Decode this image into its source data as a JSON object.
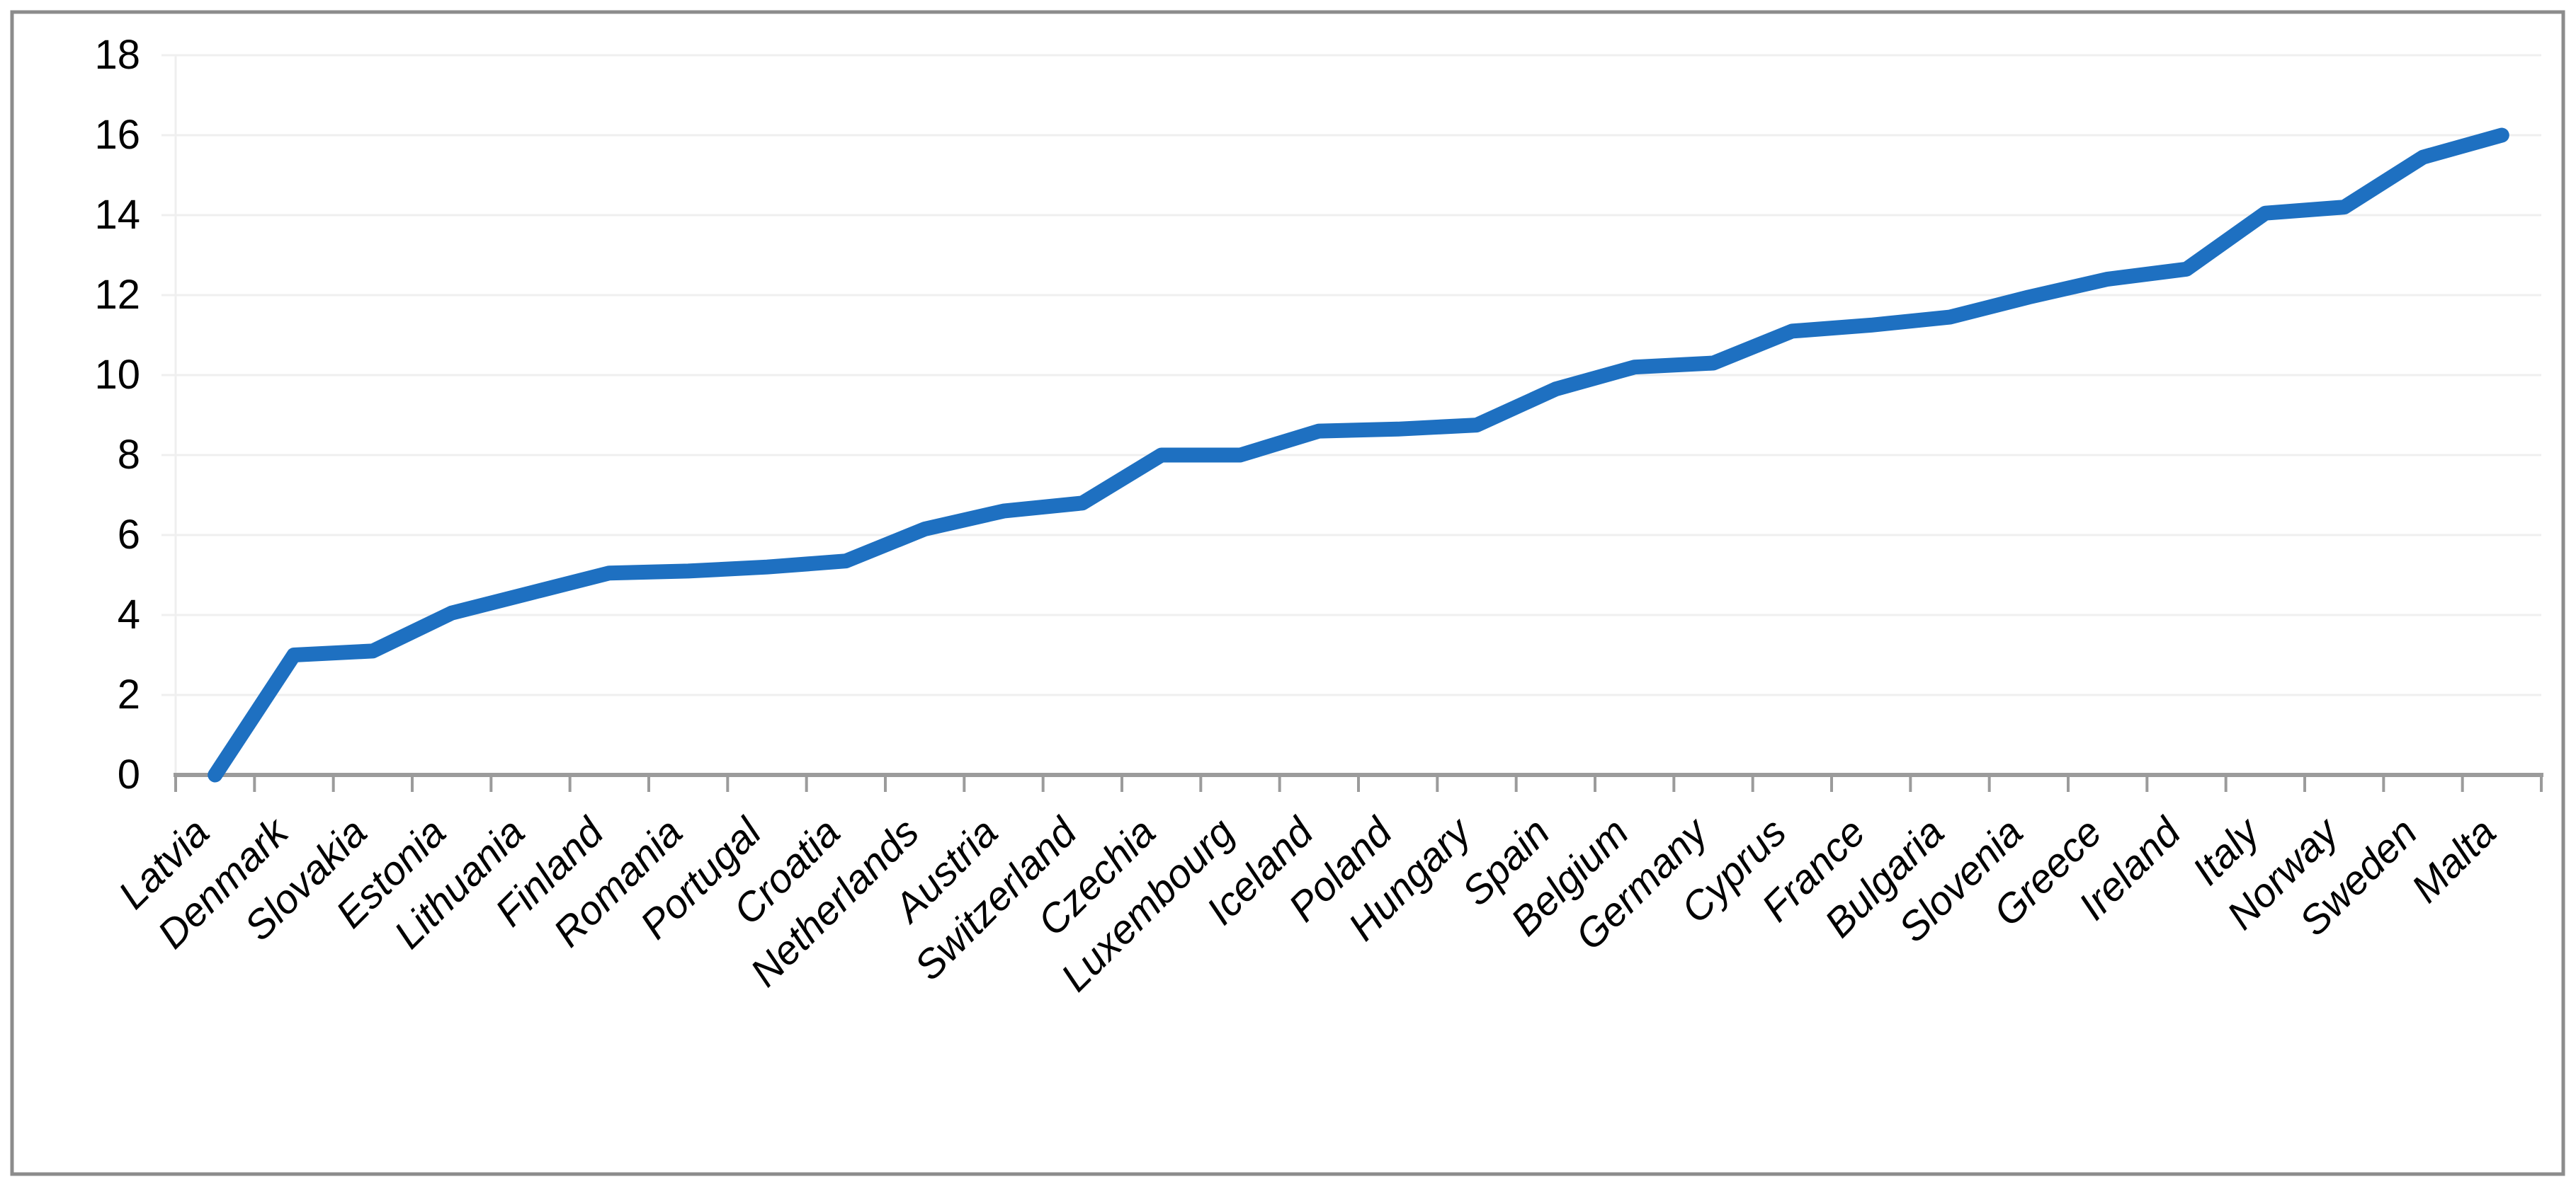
{
  "chart_data": {
    "type": "line",
    "title": "",
    "xlabel": "",
    "ylabel": "",
    "categories": [
      "Latvia",
      "Denmark",
      "Slovakia",
      "Estonia",
      "Lithuania",
      "Finland",
      "Romania",
      "Portugal",
      "Croatia",
      "Netherlands",
      "Austria",
      "Switzerland",
      "Czechia",
      "Luxembourg",
      "Iceland",
      "Poland",
      "Hungary",
      "Spain",
      "Belgium",
      "Germany",
      "Cyprus",
      "France",
      "Bulgaria",
      "Slovenia",
      "Greece",
      "Ireland",
      "Italy",
      "Norway",
      "Sweden",
      "Malta"
    ],
    "values": [
      0,
      3.0,
      3.1,
      4.05,
      4.55,
      5.05,
      5.1,
      5.2,
      5.35,
      6.15,
      6.6,
      6.8,
      8.0,
      8.0,
      8.6,
      8.65,
      8.75,
      9.65,
      10.2,
      10.3,
      11.1,
      11.25,
      11.45,
      11.95,
      12.4,
      12.65,
      14.05,
      14.2,
      15.45,
      16.0
    ],
    "ylim": [
      0,
      18
    ],
    "ytick_step": 2,
    "ytick_labels": [
      "0",
      "2",
      "4",
      "6",
      "8",
      "10",
      "12",
      "14",
      "16",
      "18"
    ],
    "grid": true,
    "legend": false,
    "x_label_rotation_deg": 45,
    "colors": {
      "line": "#1E70C1",
      "gridline": "#EFEFEF",
      "axis": "#9B9B9B",
      "frame_border": "#8C8C8C",
      "text": "#000000",
      "background": "#FFFFFF"
    }
  }
}
